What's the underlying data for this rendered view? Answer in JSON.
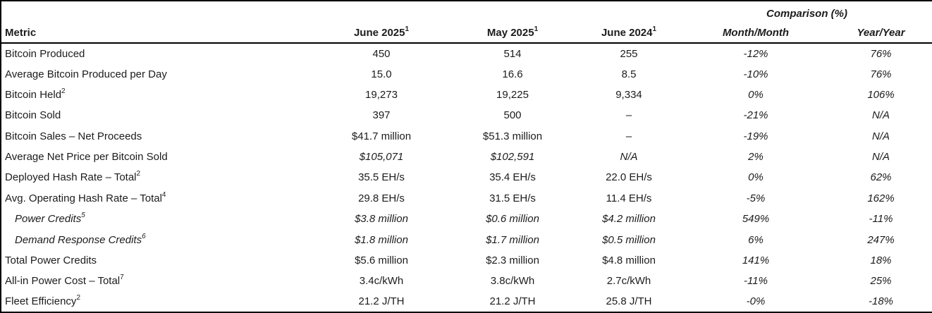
{
  "table": {
    "comparison_header": "Comparison (%)",
    "columns": [
      {
        "label": "Metric",
        "sup": ""
      },
      {
        "label": "June 2025",
        "sup": "1"
      },
      {
        "label": "May 2025",
        "sup": "1"
      },
      {
        "label": "June 2024",
        "sup": "1"
      },
      {
        "label": "Month/Month",
        "sup": ""
      },
      {
        "label": "Year/Year",
        "sup": ""
      }
    ],
    "rows": [
      {
        "metric": "Bitcoin Produced",
        "sup": "",
        "indent": false,
        "italic_metric": false,
        "italic_values": false,
        "values": [
          "450",
          "514",
          "255",
          "-12%",
          "76%"
        ]
      },
      {
        "metric": "Average Bitcoin Produced per Day",
        "sup": "",
        "indent": false,
        "italic_metric": false,
        "italic_values": false,
        "values": [
          "15.0",
          "16.6",
          "8.5",
          "-10%",
          "76%"
        ]
      },
      {
        "metric": "Bitcoin Held",
        "sup": "2",
        "indent": false,
        "italic_metric": false,
        "italic_values": false,
        "values": [
          "19,273",
          "19,225",
          "9,334",
          "0%",
          "106%"
        ]
      },
      {
        "metric": "Bitcoin Sold",
        "sup": "",
        "indent": false,
        "italic_metric": false,
        "italic_values": false,
        "values": [
          "397",
          "500",
          "–",
          "-21%",
          "N/A"
        ]
      },
      {
        "metric": "Bitcoin Sales – Net Proceeds",
        "sup": "",
        "indent": false,
        "italic_metric": false,
        "italic_values": false,
        "values": [
          "$41.7 million",
          "$51.3 million",
          "–",
          "-19%",
          "N/A"
        ]
      },
      {
        "metric": "Average Net Price per Bitcoin Sold",
        "sup": "",
        "indent": false,
        "italic_metric": false,
        "italic_values": true,
        "values": [
          "$105,071",
          "$102,591",
          "N/A",
          "2%",
          "N/A"
        ]
      },
      {
        "metric": "Deployed Hash Rate – Total",
        "sup": "2",
        "indent": false,
        "italic_metric": false,
        "italic_values": false,
        "values": [
          "35.5 EH/s",
          "35.4 EH/s",
          "22.0 EH/s",
          "0%",
          "62%"
        ]
      },
      {
        "metric": "Avg. Operating Hash Rate – Total",
        "sup": "4",
        "indent": false,
        "italic_metric": false,
        "italic_values": false,
        "values": [
          "29.8 EH/s",
          "31.5 EH/s",
          "11.4 EH/s",
          "-5%",
          "162%"
        ]
      },
      {
        "metric": "Power Credits",
        "sup": "5",
        "indent": true,
        "italic_metric": true,
        "italic_values": true,
        "values": [
          "$3.8 million",
          "$0.6 million",
          "$4.2 million",
          "549%",
          "-11%"
        ]
      },
      {
        "metric": "Demand Response Credits",
        "sup": "6",
        "indent": true,
        "italic_metric": true,
        "italic_values": true,
        "values": [
          "$1.8 million",
          "$1.7 million",
          "$0.5 million",
          "6%",
          "247%"
        ]
      },
      {
        "metric": "Total Power Credits",
        "sup": "",
        "indent": false,
        "italic_metric": false,
        "italic_values": false,
        "values": [
          "$5.6 million",
          "$2.3 million",
          "$4.8 million",
          "141%",
          "18%"
        ]
      },
      {
        "metric": "All-in Power Cost – Total",
        "sup": "7",
        "indent": false,
        "italic_metric": false,
        "italic_values": false,
        "values": [
          "3.4c/kWh",
          "3.8c/kWh",
          "2.7c/kWh",
          "-11%",
          "25%"
        ]
      },
      {
        "metric": "Fleet Efficiency",
        "sup": "2",
        "indent": false,
        "italic_metric": false,
        "italic_values": false,
        "values": [
          "21.2 J/TH",
          "21.2 J/TH",
          "25.8 J/TH",
          "-0%",
          "-18%"
        ]
      }
    ]
  },
  "colors": {
    "border": "#000000",
    "text": "#1c1c1c",
    "background": "#ffffff"
  }
}
